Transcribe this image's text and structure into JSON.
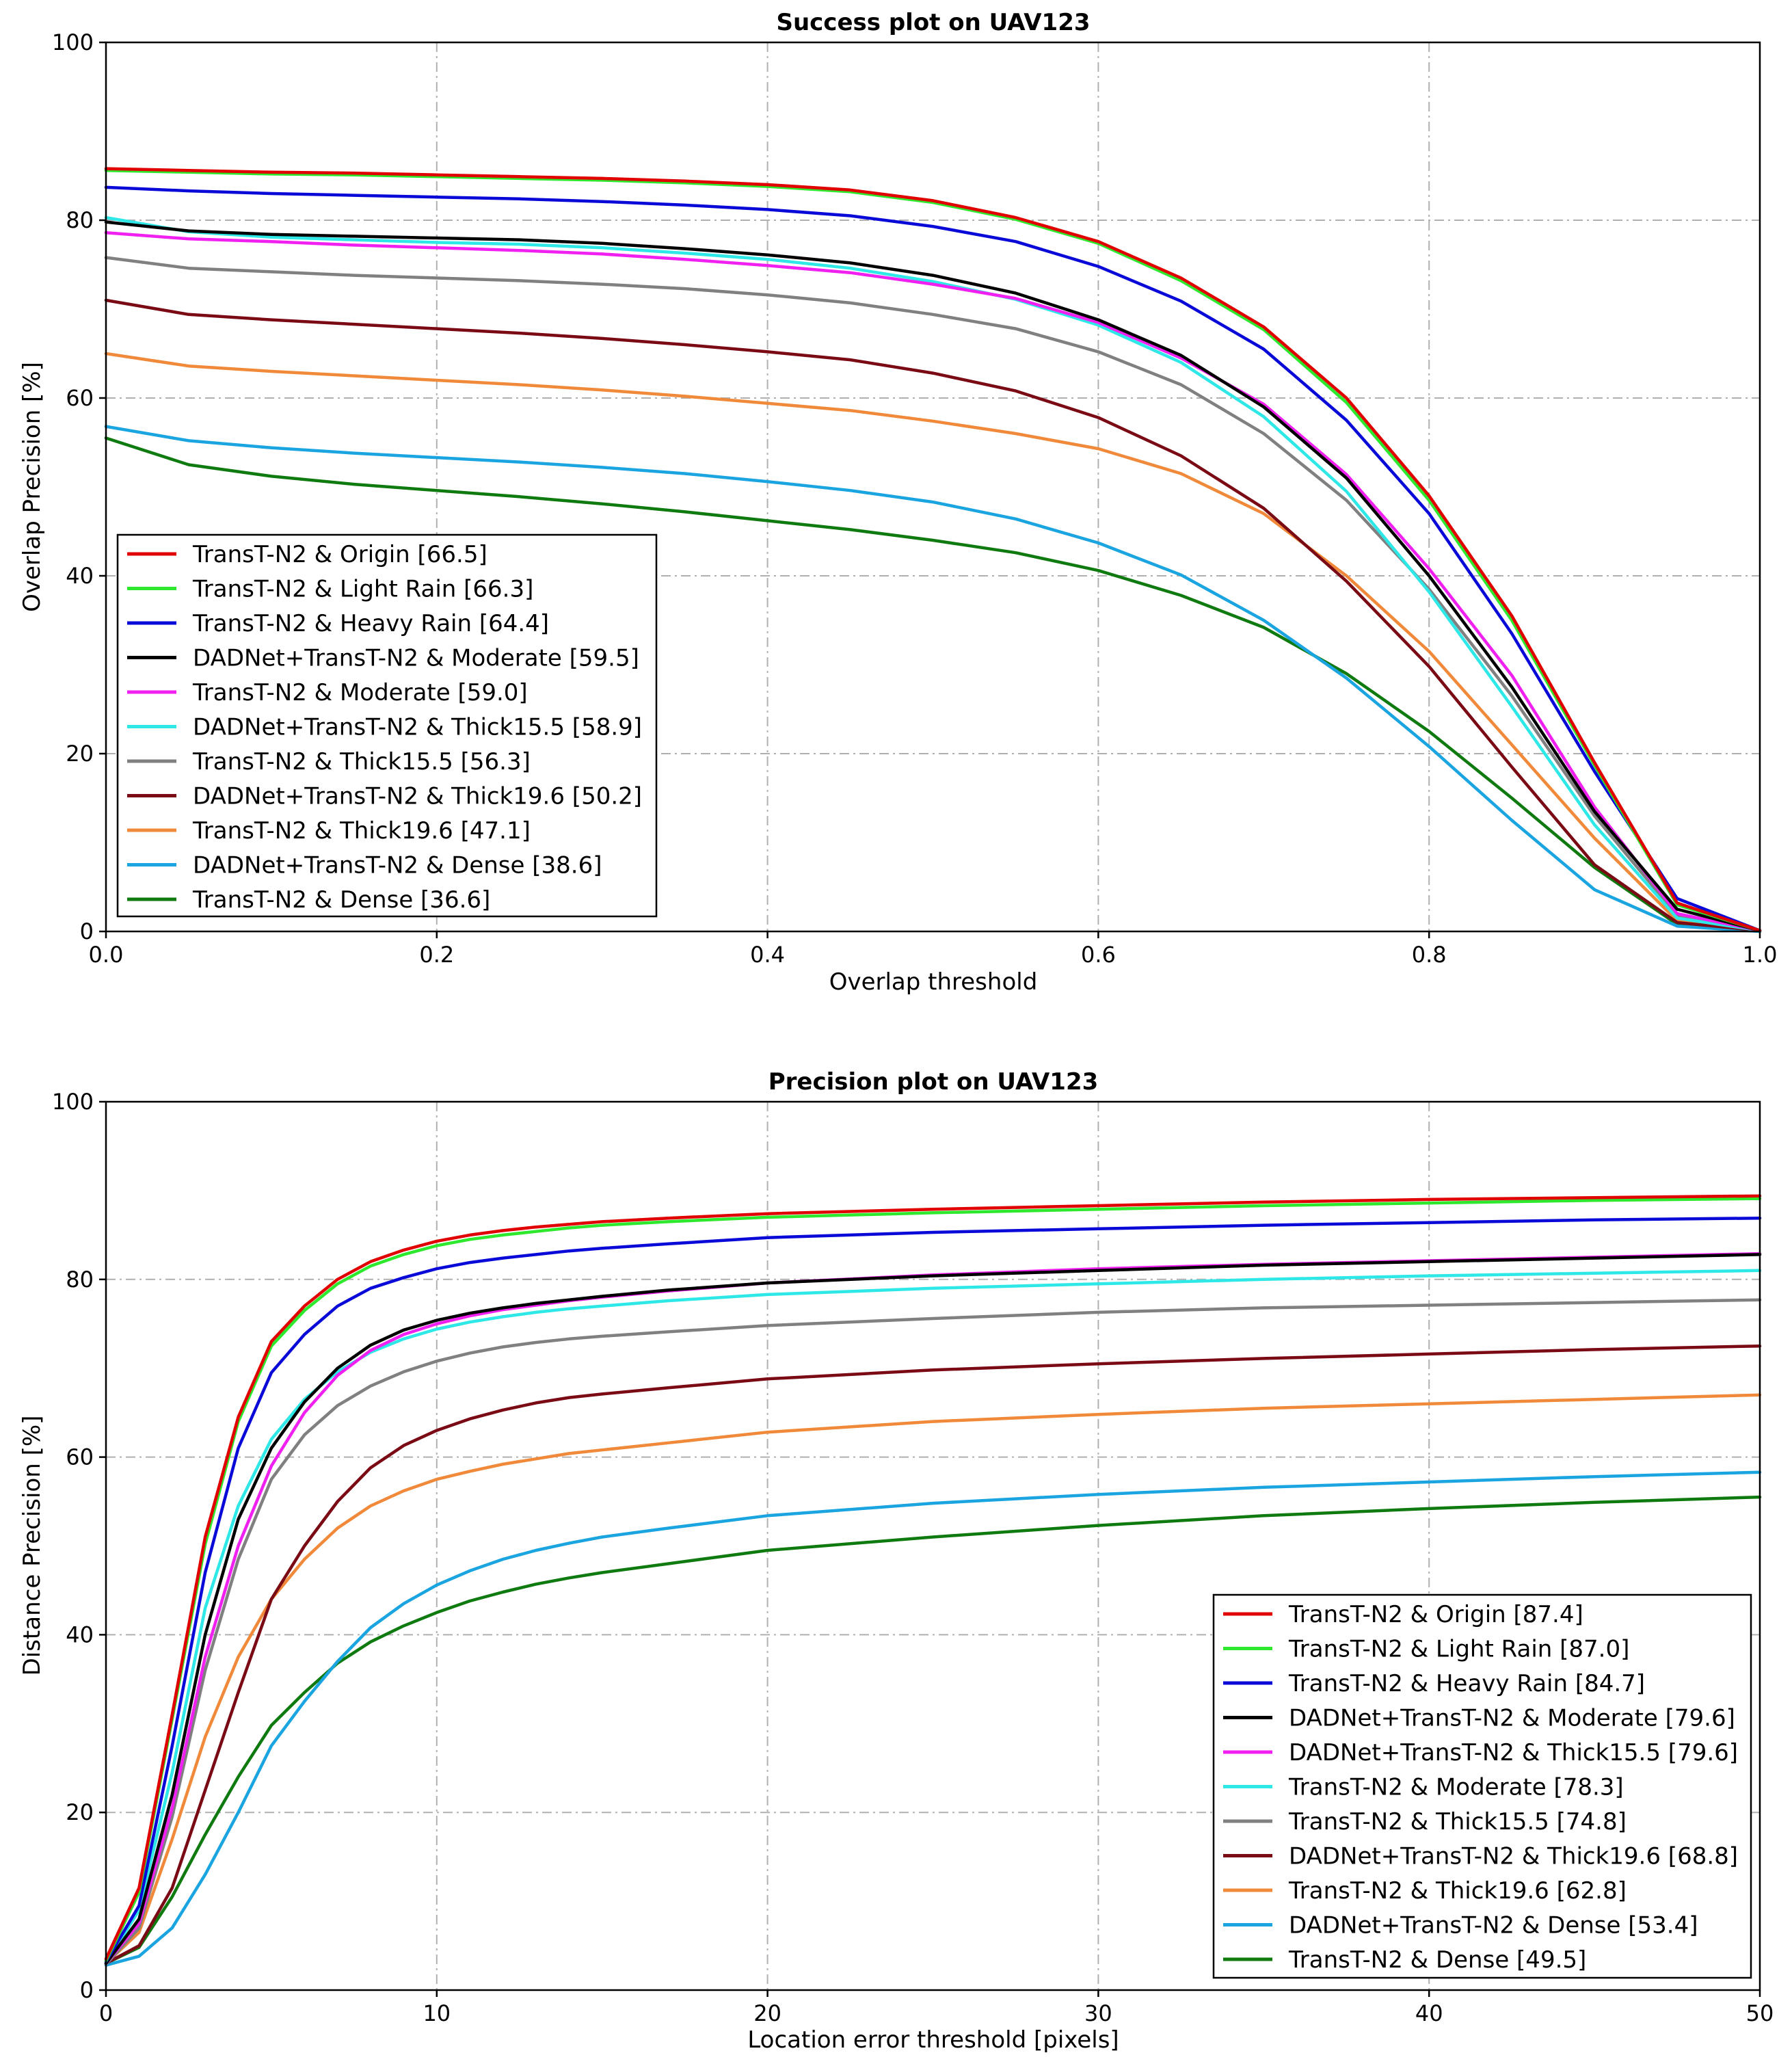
{
  "chart_data": [
    {
      "type": "line",
      "title": "Success plot on UAV123",
      "xlabel": "Overlap threshold",
      "ylabel": "Overlap Precision [%]",
      "xlim": [
        0,
        1
      ],
      "ylim": [
        0,
        100
      ],
      "xticks": [
        "0.0",
        "0.2",
        "0.4",
        "0.6",
        "0.8",
        "1.0"
      ],
      "yticks": [
        "0",
        "20",
        "40",
        "60",
        "80",
        "100"
      ],
      "grid": true,
      "legend_position": "lower-left",
      "x": [
        0,
        0.05,
        0.1,
        0.15,
        0.2,
        0.25,
        0.3,
        0.35,
        0.4,
        0.45,
        0.5,
        0.55,
        0.6,
        0.65,
        0.7,
        0.75,
        0.8,
        0.85,
        0.9,
        0.95,
        1.0
      ],
      "series": [
        {
          "name": "TransT-N2 & Origin [66.5]",
          "color": "#e00000",
          "values": [
            85.8,
            85.6,
            85.4,
            85.3,
            85.1,
            84.9,
            84.7,
            84.4,
            84.0,
            83.4,
            82.2,
            80.3,
            77.6,
            73.5,
            68.0,
            60.0,
            49.0,
            35.5,
            19.0,
            3.2,
            0.1
          ]
        },
        {
          "name": "TransT-N2 & Light Rain [66.3]",
          "color": "#2ee82e",
          "values": [
            85.6,
            85.4,
            85.2,
            85.1,
            84.9,
            84.7,
            84.5,
            84.2,
            83.8,
            83.2,
            82.0,
            80.1,
            77.4,
            73.2,
            67.7,
            59.5,
            48.5,
            35.0,
            18.7,
            3.0,
            0.1
          ]
        },
        {
          "name": "TransT-N2 & Heavy Rain [64.4]",
          "color": "#0a0ad8",
          "values": [
            83.7,
            83.3,
            83.0,
            82.8,
            82.6,
            82.4,
            82.1,
            81.7,
            81.2,
            80.5,
            79.3,
            77.6,
            74.8,
            70.9,
            65.5,
            57.5,
            47.0,
            33.5,
            18.0,
            3.7,
            0.1
          ]
        },
        {
          "name": "DADNet+TransT-N2 & Moderate [59.5]",
          "color": "#000000",
          "values": [
            79.8,
            78.8,
            78.4,
            78.2,
            78.0,
            77.8,
            77.4,
            76.8,
            76.1,
            75.2,
            73.8,
            71.8,
            68.8,
            64.8,
            59.0,
            51.0,
            40.0,
            27.5,
            13.5,
            2.5,
            0.1
          ]
        },
        {
          "name": "TransT-N2 & Moderate [59.0]",
          "color": "#f020f0",
          "values": [
            78.6,
            77.9,
            77.6,
            77.2,
            76.9,
            76.6,
            76.2,
            75.6,
            74.9,
            74.1,
            72.8,
            71.2,
            68.5,
            64.5,
            59.3,
            51.4,
            40.8,
            28.8,
            14.0,
            2.0,
            0.1
          ]
        },
        {
          "name": "DADNet+TransT-N2 & Thick15.5 [58.9]",
          "color": "#2ee8e8",
          "values": [
            80.3,
            78.7,
            78.1,
            77.8,
            77.5,
            77.3,
            76.9,
            76.3,
            75.6,
            74.6,
            73.1,
            71.1,
            68.2,
            64.0,
            57.9,
            49.5,
            38.2,
            25.3,
            12.0,
            1.5,
            0.1
          ]
        },
        {
          "name": "TransT-N2 & Thick15.5 [56.3]",
          "color": "#808080",
          "values": [
            75.8,
            74.6,
            74.2,
            73.8,
            73.5,
            73.2,
            72.8,
            72.3,
            71.6,
            70.7,
            69.4,
            67.8,
            65.2,
            61.5,
            56.0,
            48.5,
            38.5,
            26.5,
            13.0,
            1.8,
            0.1
          ]
        },
        {
          "name": "DADNet+TransT-N2 & Thick19.6 [50.2]",
          "color": "#7a0a14",
          "values": [
            71.0,
            69.4,
            68.8,
            68.3,
            67.8,
            67.3,
            66.7,
            66.0,
            65.2,
            64.3,
            62.8,
            60.8,
            57.8,
            53.5,
            47.6,
            39.4,
            29.8,
            18.5,
            7.5,
            1.0,
            0.1
          ]
        },
        {
          "name": "TransT-N2 & Thick19.6 [47.1]",
          "color": "#f08a3a",
          "values": [
            65.0,
            63.6,
            63.0,
            62.5,
            62.0,
            61.5,
            60.9,
            60.2,
            59.4,
            58.6,
            57.4,
            56.0,
            54.3,
            51.5,
            47.0,
            40.0,
            31.5,
            21.0,
            10.5,
            1.2,
            0.1
          ]
        },
        {
          "name": "DADNet+TransT-N2 & Dense [38.6]",
          "color": "#1aa4e0",
          "values": [
            56.8,
            55.2,
            54.4,
            53.8,
            53.3,
            52.8,
            52.2,
            51.5,
            50.6,
            49.6,
            48.3,
            46.4,
            43.7,
            40.1,
            35.0,
            28.5,
            20.8,
            12.5,
            4.7,
            0.6,
            0.0
          ]
        },
        {
          "name": "TransT-N2 & Dense [36.6]",
          "color": "#0f7a0f",
          "values": [
            55.5,
            52.5,
            51.2,
            50.3,
            49.6,
            48.9,
            48.1,
            47.2,
            46.2,
            45.2,
            44.0,
            42.6,
            40.6,
            37.8,
            34.2,
            29.0,
            22.5,
            15.0,
            7.2,
            0.8,
            0.0
          ]
        }
      ]
    },
    {
      "type": "line",
      "title": "Precision plot on UAV123",
      "xlabel": "Location error threshold [pixels]",
      "ylabel": "Distance Precision [%]",
      "xlim": [
        0,
        50
      ],
      "ylim": [
        0,
        100
      ],
      "xticks": [
        "0",
        "10",
        "20",
        "30",
        "40",
        "50"
      ],
      "yticks": [
        "0",
        "20",
        "40",
        "60",
        "80",
        "100"
      ],
      "grid": true,
      "legend_position": "lower-right",
      "x": [
        0,
        1,
        2,
        3,
        4,
        5,
        6,
        7,
        8,
        9,
        10,
        11,
        12,
        13,
        14,
        15,
        17,
        20,
        25,
        30,
        35,
        40,
        45,
        50
      ],
      "series": [
        {
          "name": "TransT-N2 & Origin [87.4]",
          "color": "#e00000",
          "values": [
            3.5,
            11.5,
            31.0,
            51.0,
            64.5,
            73.0,
            77.0,
            80.0,
            82.0,
            83.3,
            84.3,
            85.0,
            85.5,
            85.9,
            86.2,
            86.5,
            86.9,
            87.4,
            87.9,
            88.3,
            88.7,
            89.0,
            89.2,
            89.4
          ]
        },
        {
          "name": "TransT-N2 & Light Rain [87.0]",
          "color": "#2ee82e",
          "values": [
            3.3,
            11.0,
            30.5,
            50.2,
            64.0,
            72.5,
            76.5,
            79.5,
            81.5,
            82.8,
            83.8,
            84.5,
            85.0,
            85.4,
            85.8,
            86.1,
            86.5,
            87.0,
            87.5,
            87.9,
            88.3,
            88.6,
            88.9,
            89.1
          ]
        },
        {
          "name": "TransT-N2 & Heavy Rain [84.7]",
          "color": "#0a0ad8",
          "values": [
            3.2,
            9.5,
            27.5,
            47.0,
            61.0,
            69.5,
            73.8,
            77.0,
            79.0,
            80.2,
            81.2,
            81.9,
            82.4,
            82.8,
            83.2,
            83.5,
            84.0,
            84.7,
            85.3,
            85.7,
            86.1,
            86.4,
            86.7,
            86.9
          ]
        },
        {
          "name": "DADNet+TransT-N2 & Moderate [79.6]",
          "color": "#000000",
          "values": [
            3.0,
            8.0,
            22.0,
            40.0,
            53.0,
            61.0,
            66.2,
            70.0,
            72.6,
            74.3,
            75.4,
            76.2,
            76.8,
            77.3,
            77.7,
            78.1,
            78.8,
            79.6,
            80.4,
            81.0,
            81.6,
            82.0,
            82.4,
            82.8
          ]
        },
        {
          "name": "DADNet+TransT-N2 & Thick15.5 [79.6]",
          "color": "#f020f0",
          "values": [
            3.0,
            7.5,
            20.5,
            37.5,
            50.0,
            59.0,
            65.0,
            69.2,
            72.0,
            73.8,
            75.0,
            75.9,
            76.6,
            77.1,
            77.6,
            78.0,
            78.7,
            79.6,
            80.5,
            81.2,
            81.7,
            82.1,
            82.5,
            82.9
          ]
        },
        {
          "name": "TransT-N2 & Moderate [78.3]",
          "color": "#2ee8e8",
          "values": [
            3.0,
            9.0,
            24.5,
            43.0,
            54.5,
            62.0,
            66.5,
            69.6,
            71.8,
            73.3,
            74.4,
            75.2,
            75.8,
            76.3,
            76.7,
            77.0,
            77.6,
            78.3,
            79.0,
            79.5,
            80.0,
            80.4,
            80.7,
            81.0
          ]
        },
        {
          "name": "TransT-N2 & Thick15.5 [74.8]",
          "color": "#808080",
          "values": [
            2.9,
            7.0,
            19.5,
            36.0,
            48.5,
            57.5,
            62.5,
            65.8,
            68.0,
            69.6,
            70.8,
            71.7,
            72.4,
            72.9,
            73.3,
            73.6,
            74.1,
            74.8,
            75.6,
            76.3,
            76.8,
            77.1,
            77.4,
            77.7
          ]
        },
        {
          "name": "DADNet+TransT-N2 & Thick19.6 [68.8]",
          "color": "#7a0a14",
          "values": [
            3.0,
            5.0,
            11.5,
            22.5,
            33.5,
            44.0,
            50.0,
            55.0,
            58.8,
            61.3,
            63.0,
            64.3,
            65.3,
            66.1,
            66.7,
            67.1,
            67.8,
            68.8,
            69.8,
            70.5,
            71.1,
            71.6,
            72.1,
            72.5
          ]
        },
        {
          "name": "TransT-N2 & Thick19.6 [62.8]",
          "color": "#f08a3a",
          "values": [
            3.0,
            6.5,
            17.0,
            28.5,
            37.5,
            44.0,
            48.5,
            52.0,
            54.5,
            56.2,
            57.5,
            58.4,
            59.2,
            59.8,
            60.4,
            60.8,
            61.6,
            62.8,
            64.0,
            64.8,
            65.5,
            66.0,
            66.5,
            67.0
          ]
        },
        {
          "name": "DADNet+TransT-N2 & Dense [53.4]",
          "color": "#1aa4e0",
          "values": [
            2.8,
            3.8,
            7.0,
            13.0,
            20.0,
            27.5,
            32.5,
            37.0,
            40.8,
            43.5,
            45.6,
            47.2,
            48.5,
            49.5,
            50.3,
            51.0,
            52.0,
            53.4,
            54.8,
            55.8,
            56.6,
            57.2,
            57.8,
            58.3
          ]
        },
        {
          "name": "TransT-N2 & Dense [49.5]",
          "color": "#0f7a0f",
          "values": [
            3.0,
            4.8,
            10.5,
            17.5,
            24.0,
            29.8,
            33.5,
            36.8,
            39.2,
            41.0,
            42.5,
            43.8,
            44.8,
            45.7,
            46.4,
            47.0,
            48.0,
            49.5,
            51.0,
            52.3,
            53.4,
            54.2,
            54.9,
            55.5
          ]
        }
      ]
    }
  ]
}
